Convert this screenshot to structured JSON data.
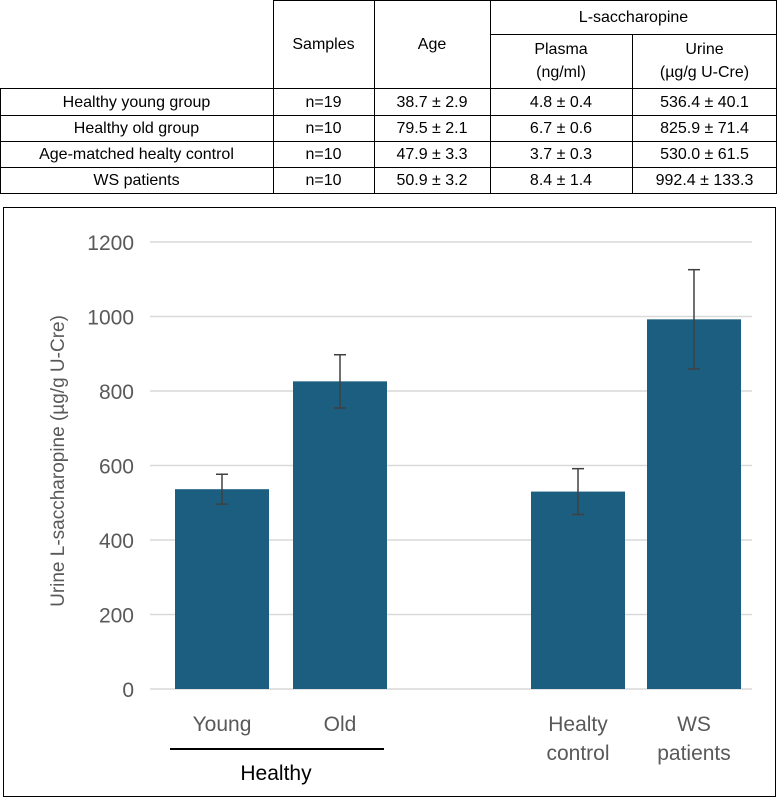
{
  "table": {
    "header": {
      "samples": "Samples",
      "age": "Age",
      "group": "L-saccharopine",
      "plasma_line1": "Plasma",
      "plasma_line2": "(ng/ml)",
      "urine_line1": "Urine",
      "urine_line2": "(µg/g U-Cre)"
    },
    "rows": [
      {
        "group": "Healthy young group",
        "samples": "n=19",
        "age": "38.7 ± 2.9",
        "plasma": "4.8 ± 0.4",
        "urine": "536.4 ± 40.1"
      },
      {
        "group": "Healthy old group",
        "samples": "n=10",
        "age": "79.5 ± 2.1",
        "plasma": "6.7 ± 0.6",
        "urine": "825.9 ± 71.4"
      },
      {
        "group": "Age-matched healty control",
        "samples": "n=10",
        "age": "47.9 ± 3.3",
        "plasma": "3.7 ± 0.3",
        "urine": "530.0 ± 61.5"
      },
      {
        "group": "WS patients",
        "samples": "n=10",
        "age": "50.9 ± 3.2",
        "plasma": "8.4 ± 1.4",
        "urine": "992.4 ± 133.3"
      }
    ]
  },
  "chart_data": {
    "type": "bar",
    "ylabel": "Urine L-saccharopine (µg/g U-Cre)",
    "ylim": [
      0,
      1200
    ],
    "yticks": [
      "0",
      "200",
      "400",
      "600",
      "800",
      "1000",
      "1200"
    ],
    "grid": true,
    "bar_color": "#1b5e80",
    "gridline_color": "#d9d9d9",
    "axis_text_color": "#595959",
    "categories": [
      {
        "line1": "Young",
        "line2": ""
      },
      {
        "line1": "Old",
        "line2": ""
      },
      {
        "line1": "Healty",
        "line2": "control"
      },
      {
        "line1": "WS",
        "line2": "patients"
      }
    ],
    "values": [
      536.4,
      825.9,
      530.0,
      992.4
    ],
    "errors": [
      40.1,
      71.4,
      61.5,
      133.3
    ],
    "group_label": "Healthy"
  }
}
